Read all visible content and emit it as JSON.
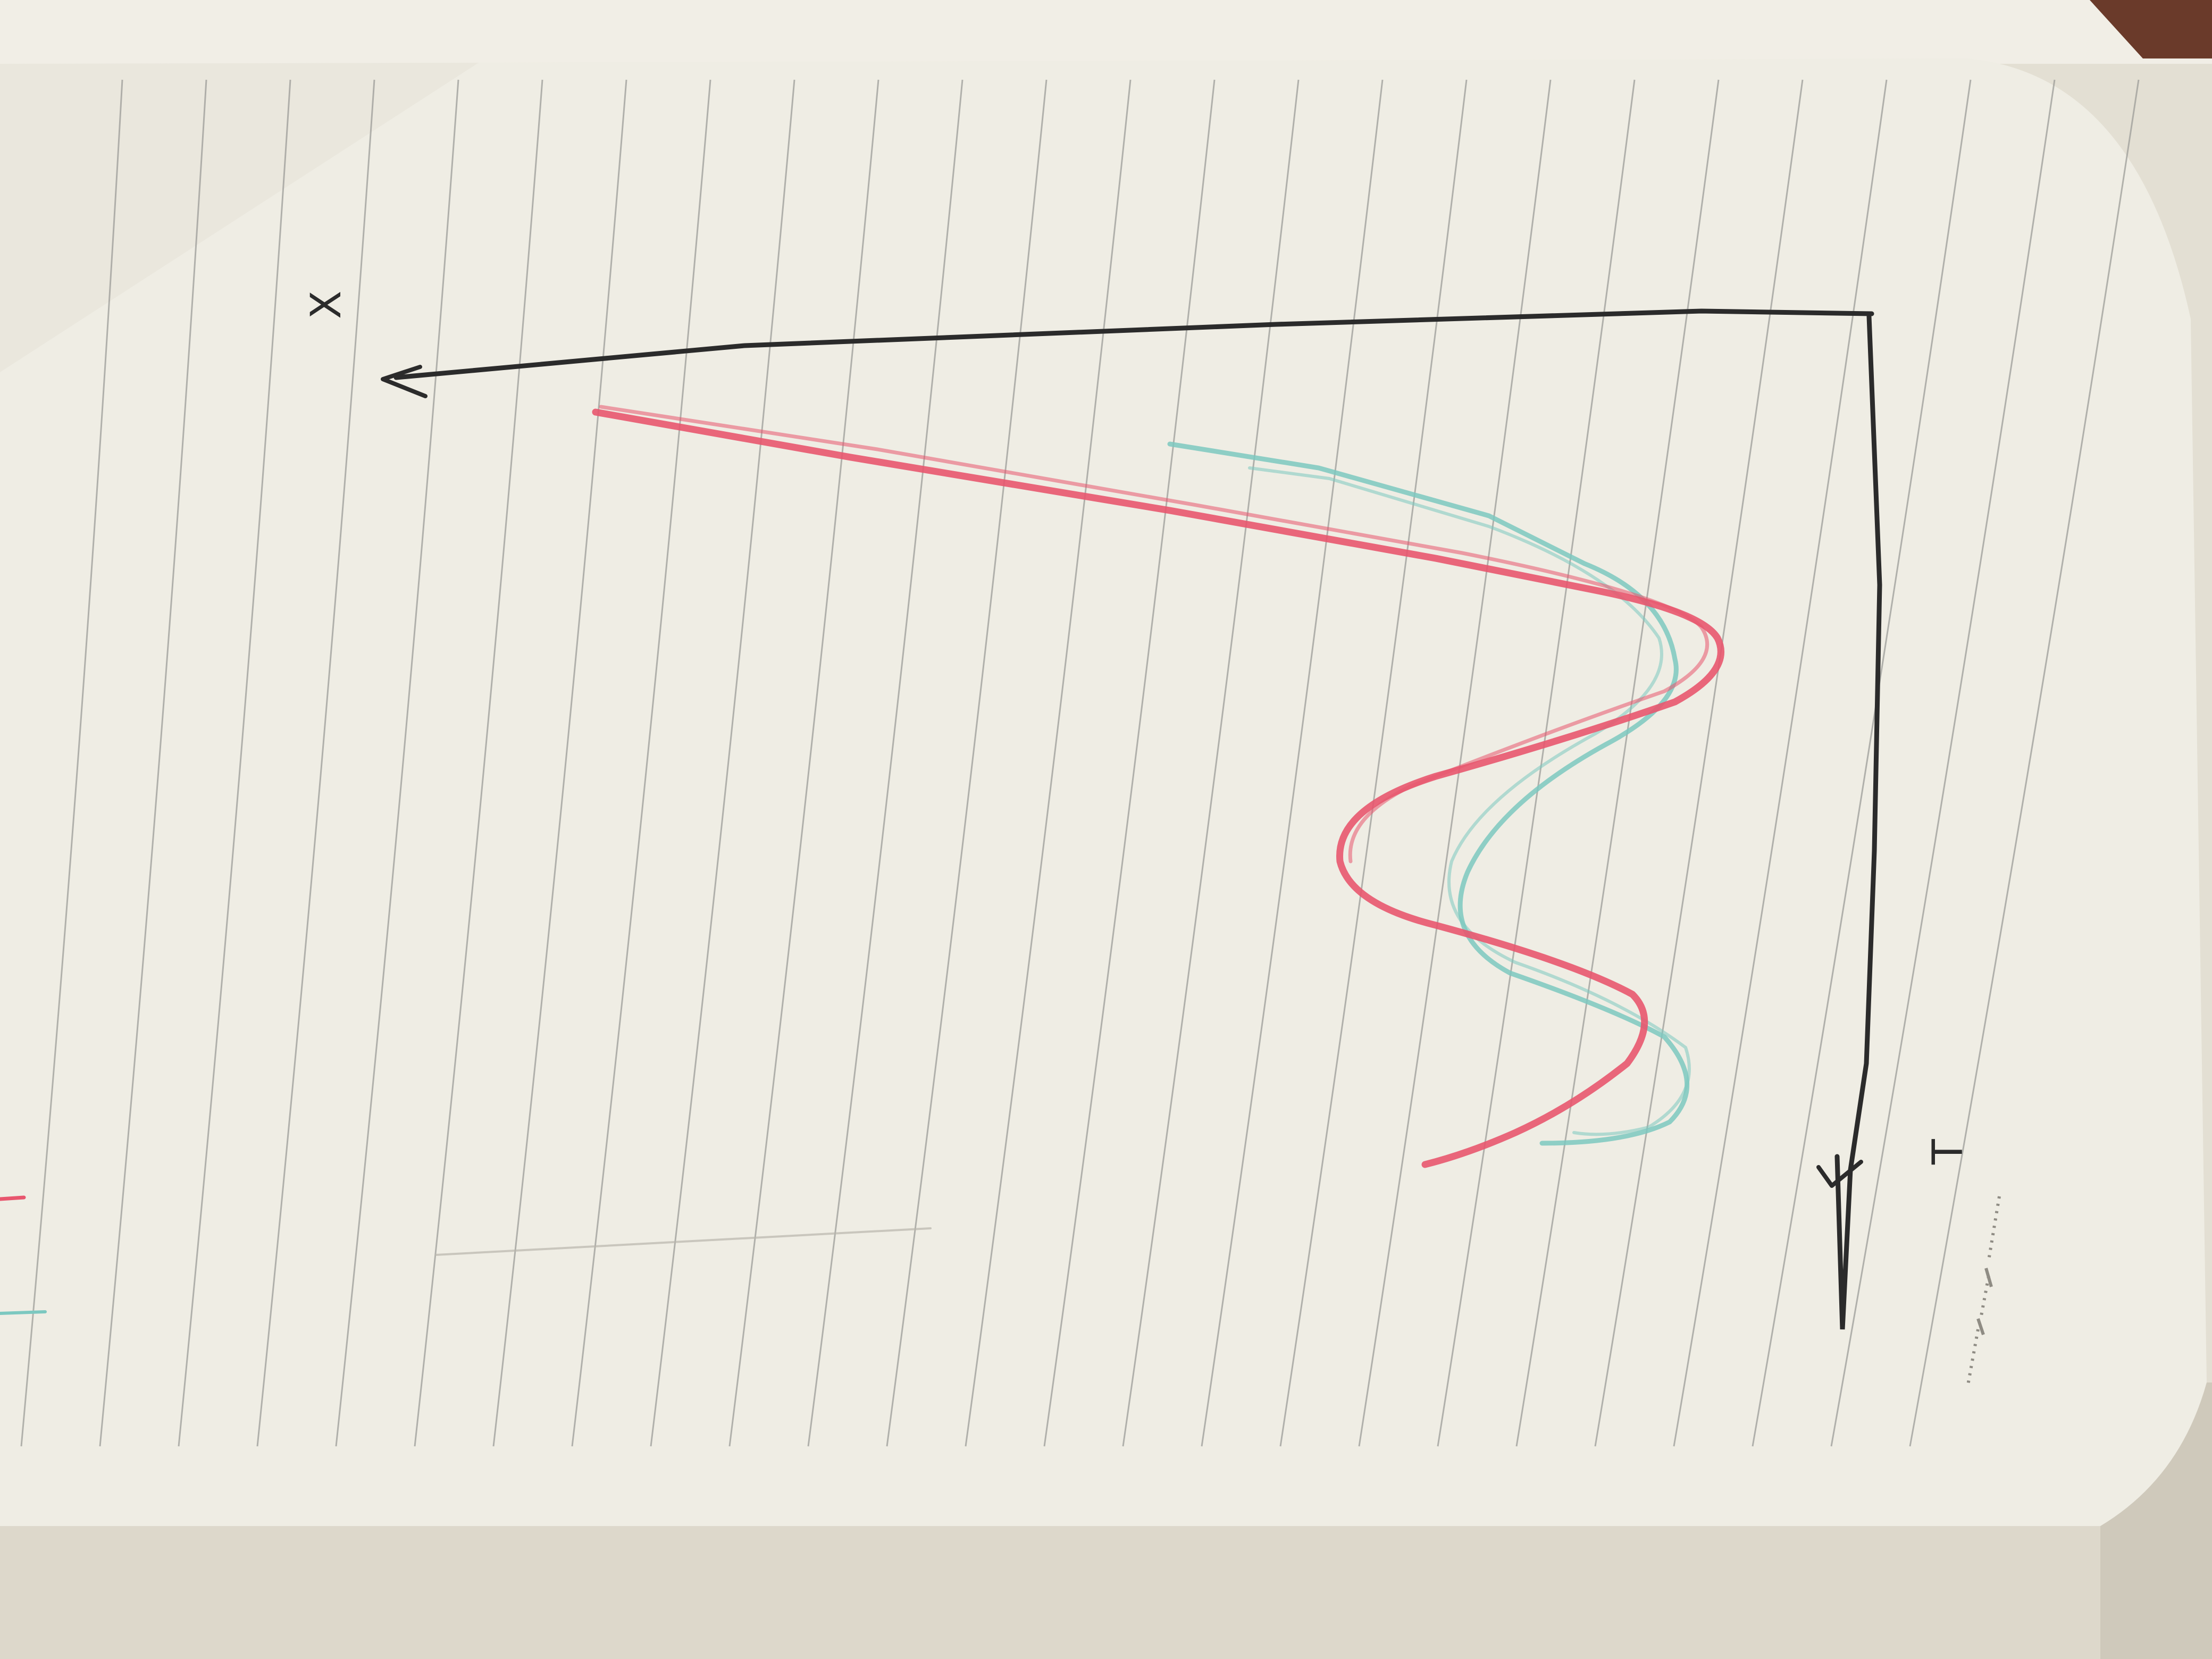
{
  "scene": {
    "subject": "notebook-sketch",
    "colors": {
      "background": "#e9e6dc",
      "page": "#efede4",
      "page_shadow": "#d6d2c5",
      "ruled_line": "#9a9a96",
      "pencil": "#2b2b2b",
      "red_pencil": "#e8566e",
      "teal_pencil": "#7cc8c0",
      "fabric": "#6a3a2a"
    }
  },
  "sketch": {
    "x_label": "X",
    "t_label": "T"
  }
}
